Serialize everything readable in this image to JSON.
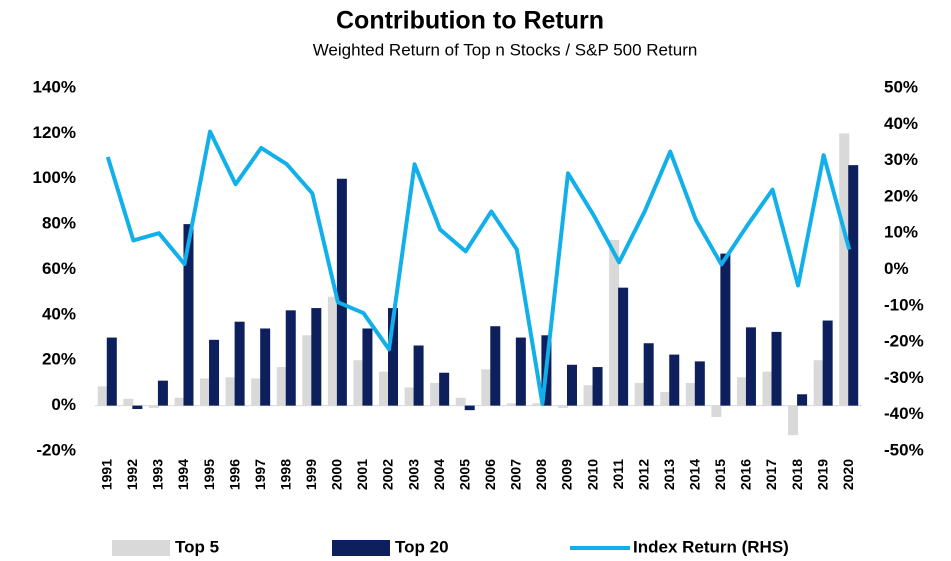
{
  "chart_data": {
    "type": "bar-line",
    "title": "Contribution to Return",
    "subtitle": "Weighted Return of Top n Stocks / S&P 500 Return",
    "categories": [
      "1991",
      "1992",
      "1993",
      "1994",
      "1995",
      "1996",
      "1997",
      "1998",
      "1999",
      "2000",
      "2001",
      "2002",
      "2003",
      "2004",
      "2005",
      "2006",
      "2007",
      "2008",
      "2009",
      "2010",
      "2011",
      "2012",
      "2013",
      "2014",
      "2015",
      "2016",
      "2017",
      "2018",
      "2019",
      "2020"
    ],
    "series": [
      {
        "name": "Top 5",
        "type": "bar",
        "color": "#d9d9d9",
        "values": [
          8.5,
          3,
          -1,
          3.5,
          12,
          12.5,
          12,
          17,
          31,
          48,
          20,
          15,
          8,
          10,
          3.5,
          16,
          1,
          1,
          -1,
          9,
          73,
          10,
          6,
          10,
          -5,
          12.5,
          15,
          -13,
          20,
          120
        ]
      },
      {
        "name": "Top 20",
        "type": "bar",
        "color": "#0d1f5c",
        "values": [
          30,
          -1.5,
          11,
          80,
          29,
          37,
          34,
          42,
          43,
          100,
          34,
          43,
          26.5,
          14.5,
          -2,
          35,
          30,
          31,
          18,
          17,
          52,
          27.5,
          22.5,
          19.5,
          67,
          34.5,
          32.5,
          5,
          37.5,
          106
        ]
      },
      {
        "name": "Index Return (RHS)",
        "type": "line",
        "axis": "y2",
        "color": "#12b0ea",
        "values": [
          31,
          8,
          10,
          1.5,
          38,
          23.5,
          33.5,
          29,
          21,
          -9,
          -12,
          -22,
          29,
          11,
          5,
          16,
          5.5,
          -37,
          26.5,
          15,
          2,
          16,
          32.5,
          13.7,
          1.4,
          12,
          22,
          -4.4,
          31.5,
          5.5
        ]
      }
    ],
    "ylim": [
      -20,
      140
    ],
    "yticks": [
      {
        "value": -20,
        "label": "-20%"
      },
      {
        "value": 0,
        "label": "0%"
      },
      {
        "value": 20,
        "label": "20%"
      },
      {
        "value": 40,
        "label": "40%"
      },
      {
        "value": 60,
        "label": "60%"
      },
      {
        "value": 80,
        "label": "80%"
      },
      {
        "value": 100,
        "label": "100%"
      },
      {
        "value": 120,
        "label": "120%"
      },
      {
        "value": 140,
        "label": "140%"
      }
    ],
    "y2lim": [
      -50,
      50
    ],
    "y2ticks": [
      {
        "value": -50,
        "label": "-50%"
      },
      {
        "value": -40,
        "label": "-40%"
      },
      {
        "value": -30,
        "label": "-30%"
      },
      {
        "value": -20,
        "label": "-20%"
      },
      {
        "value": -10,
        "label": "-10%"
      },
      {
        "value": 0,
        "label": "0%"
      },
      {
        "value": 10,
        "label": "10%"
      },
      {
        "value": 20,
        "label": "20%"
      },
      {
        "value": 30,
        "label": "30%"
      },
      {
        "value": 40,
        "label": "40%"
      },
      {
        "value": 50,
        "label": "50%"
      }
    ],
    "grid": false,
    "legend": "bottom"
  }
}
